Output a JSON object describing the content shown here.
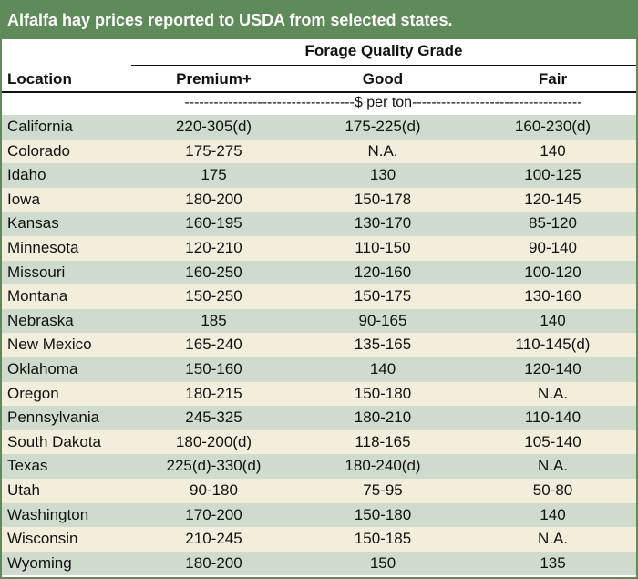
{
  "title": "Alfalfa hay prices reported to USDA from selected states.",
  "header": {
    "group_label": "Forage Quality Grade",
    "location_label": "Location",
    "grades": [
      "Premium+",
      "Good",
      "Fair"
    ],
    "units": "-----------------------------------$ per ton-----------------------------------"
  },
  "rows": [
    {
      "location": "California",
      "premium": "220-305(d)",
      "good": "175-225(d)",
      "fair": "160-230(d)"
    },
    {
      "location": "Colorado",
      "premium": "175-275",
      "good": "N.A.",
      "fair": "140"
    },
    {
      "location": "Idaho",
      "premium": "175",
      "good": "130",
      "fair": "100-125"
    },
    {
      "location": "Iowa",
      "premium": "180-200",
      "good": "150-178",
      "fair": "120-145"
    },
    {
      "location": "Kansas",
      "premium": "160-195",
      "good": "130-170",
      "fair": "85-120"
    },
    {
      "location": "Minnesota",
      "premium": "120-210",
      "good": "110-150",
      "fair": "90-140"
    },
    {
      "location": "Missouri",
      "premium": "160-250",
      "good": "120-160",
      "fair": "100-120"
    },
    {
      "location": "Montana",
      "premium": "150-250",
      "good": "150-175",
      "fair": "130-160"
    },
    {
      "location": "Nebraska",
      "premium": "185",
      "good": "90-165",
      "fair": "140"
    },
    {
      "location": "New Mexico",
      "premium": "165-240",
      "good": "135-165",
      "fair": "110-145(d)"
    },
    {
      "location": "Oklahoma",
      "premium": "150-160",
      "good": "140",
      "fair": "120-140"
    },
    {
      "location": "Oregon",
      "premium": "180-215",
      "good": "150-180",
      "fair": "N.A."
    },
    {
      "location": "Pennsylvania",
      "premium": "245-325",
      "good": "180-210",
      "fair": "110-140"
    },
    {
      "location": "South Dakota",
      "premium": "180-200(d)",
      "good": "118-165",
      "fair": "105-140"
    },
    {
      "location": "Texas",
      "premium": "225(d)-330(d)",
      "good": "180-240(d)",
      "fair": "N.A."
    },
    {
      "location": "Utah",
      "premium": "90-180",
      "good": "75-95",
      "fair": "50-80"
    },
    {
      "location": "Washington",
      "premium": "170-200",
      "good": "150-180",
      "fair": "140"
    },
    {
      "location": "Wisconsin",
      "premium": "210-245",
      "good": "150-185",
      "fair": "N.A."
    },
    {
      "location": "Wyoming",
      "premium": "180-200",
      "good": "150",
      "fair": "135"
    }
  ]
}
